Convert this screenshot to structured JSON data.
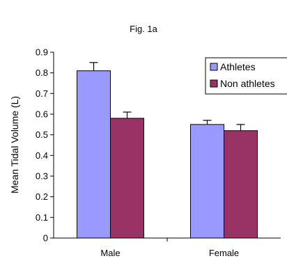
{
  "chart_data": {
    "type": "bar",
    "title": "Fig. 1a",
    "ylabel": "Mean Tidal Volume (L)",
    "xlabel": "",
    "categories": [
      "Male",
      "Female"
    ],
    "series": [
      {
        "name": "Athletes",
        "values": [
          0.81,
          0.55
        ],
        "errors": [
          0.04,
          0.02
        ],
        "color": "#9999ff"
      },
      {
        "name": "Non athletes",
        "values": [
          0.58,
          0.52
        ],
        "errors": [
          0.03,
          0.03
        ],
        "color": "#993366"
      }
    ],
    "ylim": [
      0,
      0.9
    ],
    "yticks": [
      "0",
      "0.1",
      "0.2",
      "0.3",
      "0.4",
      "0.5",
      "0.6",
      "0.7",
      "0.8",
      "0.9"
    ],
    "grid": false,
    "legend_position": "top-right"
  }
}
